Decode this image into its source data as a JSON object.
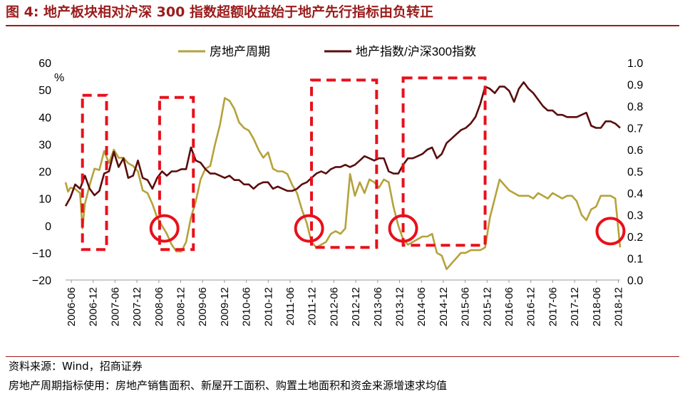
{
  "figure": {
    "title": "图 4:  地产板块相对沪深 300 指数超额收益始于地产先行指标由负转正",
    "source": "资料来源：Wind，招商证券",
    "note": "房地产周期指标使用：房地产销售面积、新屋开工面积、购置土地面积和资金来源增速求均值"
  },
  "chart_data": {
    "type": "line",
    "left_axis_unit": "%",
    "x_ticks": [
      "2006-06",
      "2006-12",
      "2007-06",
      "2007-12",
      "2008-06",
      "2008-12",
      "2009-06",
      "2009-12",
      "2010-06",
      "2010-12",
      "2011-06",
      "2011-12",
      "2012-06",
      "2012-12",
      "2013-06",
      "2013-12",
      "2014-06",
      "2014-12",
      "2015-06",
      "2015-12",
      "2016-06",
      "2016-12",
      "2017-06",
      "2017-12",
      "2018-06",
      "2018-12"
    ],
    "y_left": {
      "min": -20,
      "max": 60,
      "step": 10,
      "ticks": [
        "−20",
        "−10",
        "0",
        "10",
        "20",
        "30",
        "40",
        "50",
        "60"
      ]
    },
    "y_right": {
      "min": 0.0,
      "max": 1.0,
      "step": 0.1,
      "ticks": [
        "0.0",
        "0.1",
        "0.2",
        "0.3",
        "0.4",
        "0.5",
        "0.6",
        "0.7",
        "0.8",
        "0.9",
        "1.0"
      ]
    },
    "series": [
      {
        "name": "房地产周期",
        "axis": "left",
        "color": "#b5a23b",
        "points": [
          [
            0,
            16
          ],
          [
            0.5,
            12.5
          ],
          [
            1,
            14
          ],
          [
            2,
            13.5
          ],
          [
            3,
            12
          ],
          [
            3.5,
            -1
          ],
          [
            4,
            8
          ],
          [
            5,
            15
          ],
          [
            6,
            21
          ],
          [
            7,
            20.5
          ],
          [
            8,
            27.5
          ],
          [
            9,
            23
          ],
          [
            10,
            28
          ],
          [
            11,
            25
          ],
          [
            12,
            25
          ],
          [
            13,
            23
          ],
          [
            14,
            22
          ],
          [
            15,
            20
          ],
          [
            16,
            13
          ],
          [
            17,
            12
          ],
          [
            18,
            8
          ],
          [
            19,
            3
          ],
          [
            20,
            0
          ],
          [
            21,
            -3
          ],
          [
            22,
            -7
          ],
          [
            23,
            -9.5
          ],
          [
            24,
            -9.5
          ],
          [
            25,
            -6
          ],
          [
            26,
            3
          ],
          [
            27,
            9
          ],
          [
            28,
            17
          ],
          [
            29,
            21
          ],
          [
            30,
            22
          ],
          [
            31,
            30
          ],
          [
            32,
            37
          ],
          [
            33,
            47
          ],
          [
            34,
            46
          ],
          [
            35,
            43
          ],
          [
            36,
            38
          ],
          [
            37,
            36
          ],
          [
            38,
            35
          ],
          [
            39,
            32
          ],
          [
            40,
            28
          ],
          [
            41,
            25
          ],
          [
            42,
            27
          ],
          [
            43,
            21
          ],
          [
            44,
            20
          ],
          [
            45,
            20
          ],
          [
            46,
            19
          ],
          [
            47,
            15
          ],
          [
            48,
            12
          ],
          [
            49,
            6
          ],
          [
            50,
            1
          ],
          [
            51,
            -6
          ],
          [
            52,
            -8
          ],
          [
            53,
            -7
          ],
          [
            54,
            -6
          ],
          [
            55,
            -3
          ],
          [
            56,
            -2
          ],
          [
            57,
            -3
          ],
          [
            58,
            -1
          ],
          [
            59,
            19
          ],
          [
            60,
            11
          ],
          [
            61,
            16
          ],
          [
            62,
            12
          ],
          [
            63,
            17
          ],
          [
            64,
            16
          ],
          [
            65,
            14
          ],
          [
            66,
            17
          ],
          [
            67,
            16
          ],
          [
            68,
            7
          ],
          [
            69,
            0
          ],
          [
            70,
            -5
          ],
          [
            71,
            -7
          ],
          [
            72,
            -6
          ],
          [
            73,
            -5
          ],
          [
            74,
            -4
          ],
          [
            75,
            -4
          ],
          [
            76,
            -3
          ],
          [
            77,
            -10
          ],
          [
            78,
            -11
          ],
          [
            79,
            -16
          ],
          [
            80,
            -14
          ],
          [
            81,
            -12
          ],
          [
            82,
            -10
          ],
          [
            83,
            -10
          ],
          [
            84,
            -9
          ],
          [
            85,
            -9
          ],
          [
            86,
            -9
          ],
          [
            87,
            -8
          ],
          [
            88,
            3
          ],
          [
            89,
            10
          ],
          [
            90,
            17
          ],
          [
            91,
            15
          ],
          [
            92,
            13
          ],
          [
            93,
            12
          ],
          [
            94,
            11
          ],
          [
            95,
            11
          ],
          [
            96,
            11
          ],
          [
            97,
            10
          ],
          [
            98,
            12
          ],
          [
            99,
            11
          ],
          [
            100,
            10
          ],
          [
            101,
            12
          ],
          [
            102,
            11
          ],
          [
            103,
            10
          ],
          [
            104,
            11
          ],
          [
            105,
            11
          ],
          [
            106,
            9
          ],
          [
            107,
            4
          ],
          [
            108,
            2
          ],
          [
            109,
            6
          ],
          [
            110,
            7
          ],
          [
            111,
            11
          ],
          [
            112,
            11
          ],
          [
            113,
            11
          ],
          [
            114,
            10
          ],
          [
            115,
            -8
          ]
        ]
      },
      {
        "name": "地产指数/沪深300指数",
        "axis": "right",
        "color": "#5a0d0d",
        "points": [
          [
            0,
            0.34
          ],
          [
            1,
            0.38
          ],
          [
            2,
            0.44
          ],
          [
            3,
            0.42
          ],
          [
            4,
            0.48
          ],
          [
            5,
            0.42
          ],
          [
            6,
            0.39
          ],
          [
            7,
            0.41
          ],
          [
            8,
            0.49
          ],
          [
            9,
            0.5
          ],
          [
            10,
            0.59
          ],
          [
            11,
            0.52
          ],
          [
            12,
            0.56
          ],
          [
            13,
            0.47
          ],
          [
            14,
            0.48
          ],
          [
            15,
            0.55
          ],
          [
            16,
            0.47
          ],
          [
            17,
            0.46
          ],
          [
            18,
            0.42
          ],
          [
            19,
            0.47
          ],
          [
            20,
            0.5
          ],
          [
            21,
            0.48
          ],
          [
            22,
            0.5
          ],
          [
            23,
            0.5
          ],
          [
            24,
            0.51
          ],
          [
            25,
            0.51
          ],
          [
            26,
            0.61
          ],
          [
            27,
            0.55
          ],
          [
            28,
            0.54
          ],
          [
            29,
            0.51
          ],
          [
            30,
            0.49
          ],
          [
            31,
            0.49
          ],
          [
            32,
            0.48
          ],
          [
            33,
            0.47
          ],
          [
            34,
            0.48
          ],
          [
            35,
            0.46
          ],
          [
            36,
            0.46
          ],
          [
            37,
            0.44
          ],
          [
            38,
            0.44
          ],
          [
            39,
            0.42
          ],
          [
            40,
            0.44
          ],
          [
            41,
            0.45
          ],
          [
            42,
            0.45
          ],
          [
            43,
            0.42
          ],
          [
            44,
            0.43
          ],
          [
            45,
            0.42
          ],
          [
            46,
            0.41
          ],
          [
            47,
            0.41
          ],
          [
            48,
            0.42
          ],
          [
            49,
            0.44
          ],
          [
            50,
            0.45
          ],
          [
            51,
            0.47
          ],
          [
            52,
            0.49
          ],
          [
            53,
            0.5
          ],
          [
            54,
            0.49
          ],
          [
            55,
            0.51
          ],
          [
            56,
            0.52
          ],
          [
            57,
            0.52
          ],
          [
            58,
            0.53
          ],
          [
            59,
            0.52
          ],
          [
            60,
            0.53
          ],
          [
            61,
            0.55
          ],
          [
            62,
            0.57
          ],
          [
            63,
            0.56
          ],
          [
            64,
            0.55
          ],
          [
            65,
            0.56
          ],
          [
            66,
            0.56
          ],
          [
            67,
            0.5
          ],
          [
            68,
            0.49
          ],
          [
            69,
            0.49
          ],
          [
            70,
            0.53
          ],
          [
            71,
            0.56
          ],
          [
            72,
            0.56
          ],
          [
            73,
            0.57
          ],
          [
            74,
            0.58
          ],
          [
            75,
            0.6
          ],
          [
            76,
            0.61
          ],
          [
            77,
            0.56
          ],
          [
            78,
            0.58
          ],
          [
            79,
            0.63
          ],
          [
            80,
            0.65
          ],
          [
            81,
            0.67
          ],
          [
            82,
            0.69
          ],
          [
            83,
            0.7
          ],
          [
            84,
            0.72
          ],
          [
            85,
            0.75
          ],
          [
            86,
            0.81
          ],
          [
            87,
            0.89
          ],
          [
            88,
            0.88
          ],
          [
            89,
            0.86
          ],
          [
            90,
            0.89
          ],
          [
            91,
            0.89
          ],
          [
            92,
            0.87
          ],
          [
            93,
            0.82
          ],
          [
            94,
            0.88
          ],
          [
            95,
            0.91
          ],
          [
            96,
            0.88
          ],
          [
            97,
            0.86
          ],
          [
            98,
            0.83
          ],
          [
            99,
            0.8
          ],
          [
            100,
            0.78
          ],
          [
            101,
            0.78
          ],
          [
            102,
            0.76
          ],
          [
            103,
            0.76
          ],
          [
            104,
            0.75
          ],
          [
            105,
            0.75
          ],
          [
            106,
            0.75
          ],
          [
            107,
            0.76
          ],
          [
            108,
            0.77
          ],
          [
            109,
            0.71
          ],
          [
            110,
            0.7
          ],
          [
            111,
            0.7
          ],
          [
            112,
            0.73
          ],
          [
            113,
            0.73
          ],
          [
            114,
            0.72
          ],
          [
            115,
            0.7
          ]
        ]
      }
    ],
    "highlight_boxes": [
      {
        "x_from": 3.5,
        "x_to": 8.5,
        "y_top": 0.85,
        "y_bottom": 0.14
      },
      {
        "x_from": 19.5,
        "x_to": 26.5,
        "y_top": 0.84,
        "y_bottom": 0.14
      },
      {
        "x_from": 51,
        "x_to": 64.5,
        "y_top": 0.92,
        "y_bottom": 0.15
      },
      {
        "x_from": 70,
        "x_to": 87,
        "y_top": 0.93,
        "y_bottom": 0.16
      }
    ],
    "highlight_circles": [
      {
        "x": 20.5,
        "y_left": -1
      },
      {
        "x": 50.5,
        "y_left": -1
      },
      {
        "x": 70,
        "y_left": -1
      },
      {
        "x": 113,
        "y_left": -2
      }
    ],
    "annotation_color": "#e8101b"
  }
}
